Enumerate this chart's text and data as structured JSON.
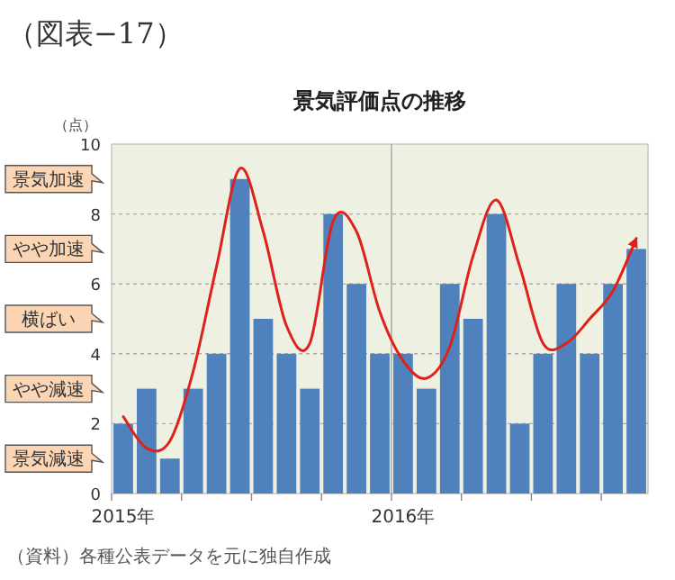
{
  "chart_data": {
    "type": "bar",
    "title": "景気評価点の推移",
    "ylabel": "（点）",
    "categories": [
      "2015年",
      null,
      null,
      null,
      null,
      null,
      null,
      null,
      null,
      null,
      null,
      null,
      "2016年",
      null,
      null,
      null,
      null,
      null,
      null,
      null,
      null,
      null,
      null
    ],
    "series": [
      {
        "color": "#4f81bd",
        "values": [
          2,
          3,
          1,
          3,
          4,
          9,
          5,
          4,
          3,
          8,
          6,
          4,
          4,
          3,
          6,
          5,
          8,
          2,
          4,
          6,
          4,
          6,
          7
        ]
      },
      {
        "type": "line",
        "color": "#e0201b",
        "line_style": "solid",
        "marker": "none",
        "values": [
          2.2,
          1.3,
          1.5,
          3.5,
          6.5,
          9.3,
          7.5,
          4.8,
          4.3,
          7.8,
          7.5,
          5.2,
          3.8,
          3.3,
          4.2,
          6.8,
          8.4,
          6.5,
          4.3,
          4.3,
          5.0,
          5.8,
          7.3
        ]
      }
    ],
    "ylim": [
      0,
      10
    ],
    "yticks": [
      0,
      2,
      4,
      6,
      8,
      10
    ],
    "grid": "y",
    "annotations": [
      "（図表−17）",
      "景気加速",
      "やや加速",
      "横ばい",
      "やや減速",
      "景気減速",
      "（資料）各種公表データを元に独自作成"
    ]
  }
}
